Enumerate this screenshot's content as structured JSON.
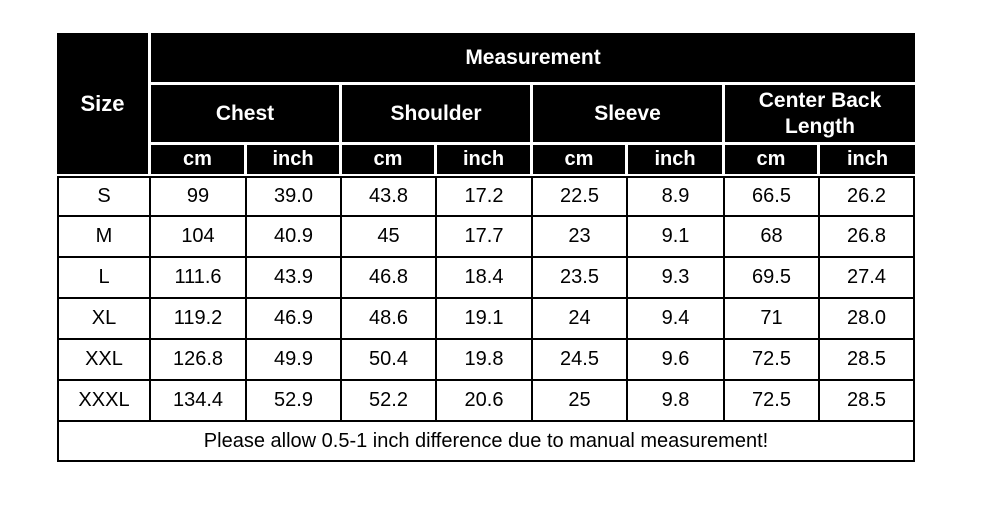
{
  "table": {
    "corner_label": "Size",
    "top_header": "Measurement",
    "column_groups": [
      {
        "label": "Chest",
        "units": [
          "cm",
          "inch"
        ]
      },
      {
        "label": "Shoulder",
        "units": [
          "cm",
          "inch"
        ]
      },
      {
        "label": "Sleeve",
        "units": [
          "cm",
          "inch"
        ]
      },
      {
        "label": "Center Back Length",
        "units": [
          "cm",
          "inch"
        ]
      }
    ],
    "rows": [
      {
        "size": "S",
        "values": [
          "99",
          "39.0",
          "43.8",
          "17.2",
          "22.5",
          "8.9",
          "66.5",
          "26.2"
        ]
      },
      {
        "size": "M",
        "values": [
          "104",
          "40.9",
          "45",
          "17.7",
          "23",
          "9.1",
          "68",
          "26.8"
        ]
      },
      {
        "size": "L",
        "values": [
          "111.6",
          "43.9",
          "46.8",
          "18.4",
          "23.5",
          "9.3",
          "69.5",
          "27.4"
        ]
      },
      {
        "size": "XL",
        "values": [
          "119.2",
          "46.9",
          "48.6",
          "19.1",
          "24",
          "9.4",
          "71",
          "28.0"
        ]
      },
      {
        "size": "XXL",
        "values": [
          "126.8",
          "49.9",
          "50.4",
          "19.8",
          "24.5",
          "9.6",
          "72.5",
          "28.5"
        ]
      },
      {
        "size": "XXXL",
        "values": [
          "134.4",
          "52.9",
          "52.2",
          "20.6",
          "25",
          "9.8",
          "72.5",
          "28.5"
        ]
      }
    ],
    "footer_note": "Please allow 0.5-1 inch difference due to manual measurement!"
  },
  "chart_data": {
    "type": "table",
    "title": "Measurement",
    "columns": [
      "Size",
      "Chest cm",
      "Chest inch",
      "Shoulder cm",
      "Shoulder inch",
      "Sleeve cm",
      "Sleeve inch",
      "Center Back Length cm",
      "Center Back Length inch"
    ],
    "rows": [
      [
        "S",
        99,
        39.0,
        43.8,
        17.2,
        22.5,
        8.9,
        66.5,
        26.2
      ],
      [
        "M",
        104,
        40.9,
        45,
        17.7,
        23,
        9.1,
        68,
        26.8
      ],
      [
        "L",
        111.6,
        43.9,
        46.8,
        18.4,
        23.5,
        9.3,
        69.5,
        27.4
      ],
      [
        "XL",
        119.2,
        46.9,
        48.6,
        19.1,
        24,
        9.4,
        71,
        28.0
      ],
      [
        "XXL",
        126.8,
        49.9,
        50.4,
        19.8,
        24.5,
        9.6,
        72.5,
        28.5
      ],
      [
        "XXXL",
        134.4,
        52.9,
        52.2,
        20.6,
        25,
        9.8,
        72.5,
        28.5
      ]
    ],
    "annotations": [
      "Please allow 0.5-1 inch difference due to manual measurement!"
    ]
  },
  "colors": {
    "header_bg": "#000000",
    "header_text": "#ffffff",
    "body_bg": "#ffffff",
    "body_text": "#000000",
    "grid": "#000000",
    "page_bg": "#ffffff"
  }
}
